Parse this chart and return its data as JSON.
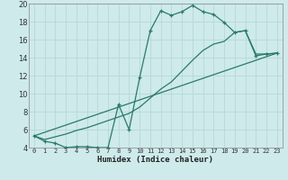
{
  "xlabel": "Humidex (Indice chaleur)",
  "background_color": "#ceeaea",
  "grid_color": "#b8d8d8",
  "line_color": "#2a7a6a",
  "xlim": [
    -0.5,
    23.5
  ],
  "ylim": [
    4,
    20
  ],
  "yticks": [
    4,
    6,
    8,
    10,
    12,
    14,
    16,
    18,
    20
  ],
  "xticks": [
    0,
    1,
    2,
    3,
    4,
    5,
    6,
    7,
    8,
    9,
    10,
    11,
    12,
    13,
    14,
    15,
    16,
    17,
    18,
    19,
    20,
    21,
    22,
    23
  ],
  "curve1_x": [
    0,
    1,
    2,
    3,
    4,
    5,
    6,
    7,
    8,
    9,
    10,
    11,
    12,
    13,
    14,
    15,
    16,
    17,
    18,
    19,
    20,
    21,
    22,
    23
  ],
  "curve1_y": [
    5.3,
    4.7,
    4.5,
    4.0,
    4.1,
    4.1,
    4.0,
    4.0,
    8.8,
    6.0,
    11.8,
    17.0,
    19.2,
    18.7,
    19.1,
    19.8,
    19.1,
    18.8,
    17.9,
    16.8,
    17.0,
    14.2,
    14.4,
    14.5
  ],
  "curve2_x": [
    0,
    1,
    2,
    3,
    4,
    5,
    6,
    7,
    8,
    9,
    10,
    11,
    12,
    13,
    14,
    15,
    16,
    17,
    18,
    19,
    20,
    21,
    22,
    23
  ],
  "curve2_y": [
    5.3,
    4.9,
    5.2,
    5.5,
    5.9,
    6.2,
    6.6,
    7.0,
    7.4,
    7.8,
    8.5,
    9.5,
    10.5,
    11.3,
    12.5,
    13.7,
    14.8,
    15.5,
    15.8,
    16.8,
    17.0,
    14.4,
    14.4,
    14.5
  ],
  "curve3_x": [
    0,
    23
  ],
  "curve3_y": [
    5.3,
    14.5
  ]
}
